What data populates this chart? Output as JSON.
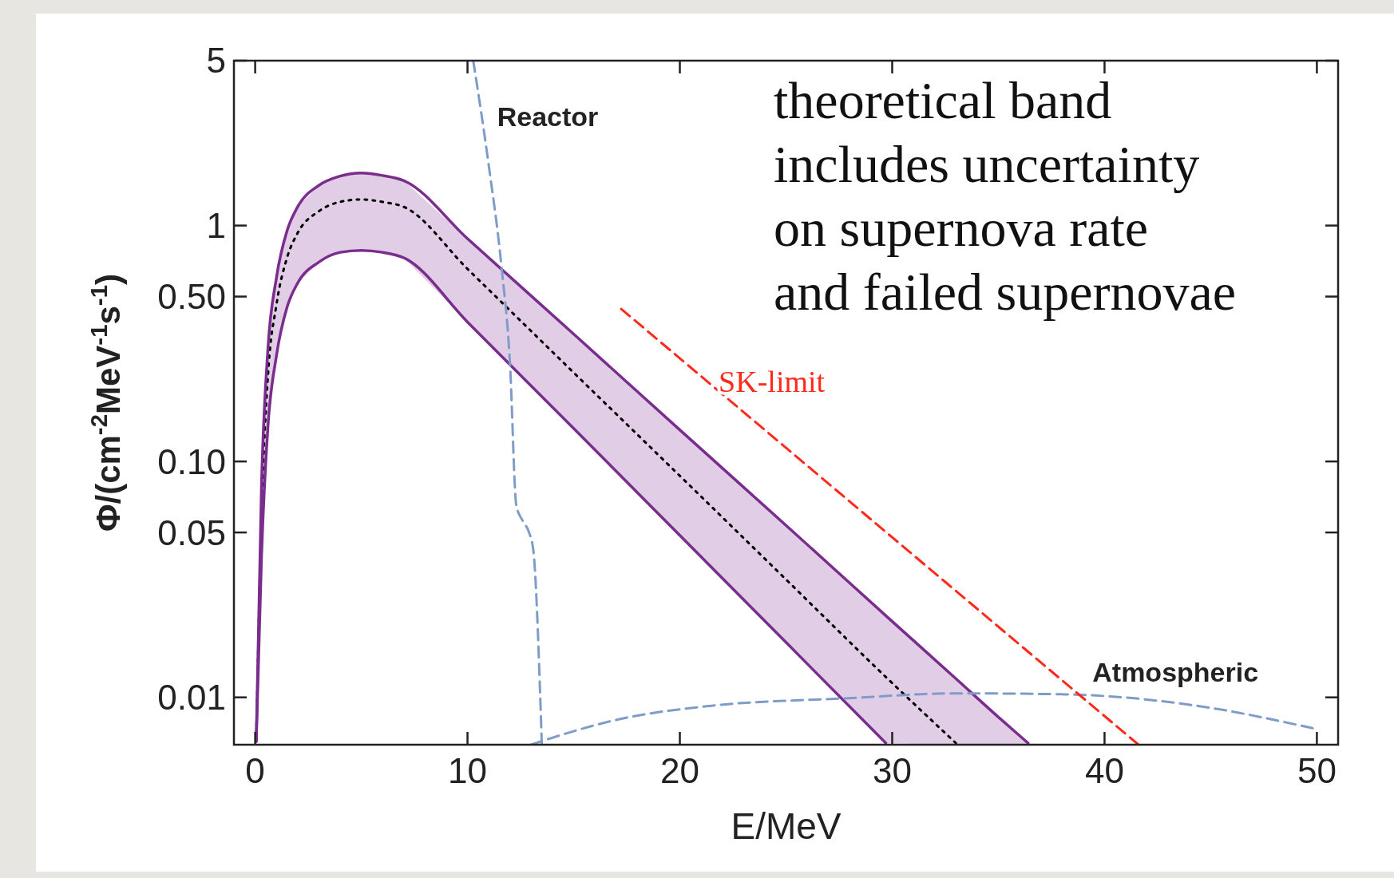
{
  "chart_data": {
    "type": "line",
    "xlabel": "E/MeV",
    "ylabel": "Φ/(cm$^{-2}$MeV$^{-1}$s$^{-1}$)",
    "log": "y",
    "xlim": [
      -1,
      51
    ],
    "ylim": [
      0.0063,
      5
    ],
    "xticks": [
      0,
      10,
      20,
      30,
      40,
      50
    ],
    "yticks": [
      0.01,
      {
        "value": 0.05,
        "label": "0.05"
      },
      {
        "value": 0.1,
        "label": "0.10"
      },
      {
        "value": 0.5,
        "label": "0.50"
      },
      1,
      5
    ],
    "grid": false,
    "annotations": [
      "theoretical band\nincludes uncertainty\non supernova rate\nand failed supernovae"
    ],
    "series": [
      {
        "color": "#7b2d8e",
        "line_style": "solid",
        "x": [
          0.05,
          0.3,
          0.6,
          1,
          1.5,
          2,
          3,
          4,
          5,
          6,
          7,
          10,
          15,
          20,
          25,
          29.7,
          33,
          35,
          36.4
        ],
        "values": [
          0.0065,
          0.08,
          0.3,
          0.6,
          0.95,
          1.2,
          1.48,
          1.62,
          1.67,
          1.63,
          1.55,
          0.88,
          0.347,
          0.136,
          0.0536,
          0.0222,
          0.012,
          0.00825,
          0.0064
        ]
      },
      {
        "color": "#7b2d8e",
        "line_style": "solid",
        "x": [
          0.05,
          0.3,
          0.6,
          1,
          1.5,
          2,
          3,
          4,
          5,
          6,
          7,
          10,
          15,
          20,
          25,
          29.7
        ],
        "values": [
          0.0065,
          0.04,
          0.14,
          0.28,
          0.45,
          0.57,
          0.7,
          0.77,
          0.785,
          0.77,
          0.73,
          0.39,
          0.138,
          0.0486,
          0.0171,
          0.0064
        ]
      },
      {
        "color": "#000000",
        "line_style": "dotted",
        "x": [
          0.05,
          0.3,
          0.6,
          1,
          1.5,
          2,
          3,
          4,
          5,
          6,
          7,
          10,
          15,
          20,
          25,
          29.7,
          33,
          35,
          36.4
        ],
        "values": [
          0.0065,
          0.06,
          0.23,
          0.46,
          0.73,
          0.93,
          1.15,
          1.26,
          1.29,
          1.26,
          1.2,
          0.655,
          0.238,
          0.0869,
          0.0316,
          0.0122,
          0.0064,
          null,
          null
        ],
        "lower": [
          0.0065,
          0.04,
          0.14,
          0.28,
          0.45,
          0.57,
          0.7,
          0.77,
          0.785,
          0.77,
          0.73,
          0.39,
          0.138,
          0.0486,
          0.0171,
          0.0064,
          0.0063,
          0.0063,
          0.0063
        ],
        "upper": [
          0.0065,
          0.08,
          0.3,
          0.6,
          0.95,
          1.2,
          1.48,
          1.62,
          1.67,
          1.63,
          1.55,
          0.88,
          0.347,
          0.136,
          0.0536,
          0.0222,
          0.012,
          0.00825,
          0.0064
        ]
      },
      {
        "name": "Reactor",
        "color": "#7f9cc8",
        "line_style": "dashed",
        "x": [
          10.27,
          11.0,
          11.6,
          12.0,
          12.3,
          12.6,
          12.9,
          13.1,
          13.5
        ],
        "values": [
          5,
          1.8,
          0.67,
          0.26,
          0.065,
          0.056,
          0.05,
          0.042,
          0.0063
        ]
      },
      {
        "name": "Atmospheric",
        "color": "#7f9cc8",
        "line_style": "dashed",
        "x": [
          13.0,
          13.9,
          17.2,
          21.4,
          27.7,
          33.1,
          38.1,
          44.4,
          49.8
        ],
        "values": [
          0.0063,
          0.0067,
          0.0081,
          0.0092,
          0.0099,
          0.0104,
          0.0103,
          0.0092,
          0.0074
        ]
      },
      {
        "name": "SK-limit",
        "color": "#ff2a1a",
        "line_style": "dashed",
        "x": [
          17.24,
          30,
          41.6
        ],
        "values": [
          0.443,
          0.0477,
          0.0063
        ]
      }
    ]
  }
}
